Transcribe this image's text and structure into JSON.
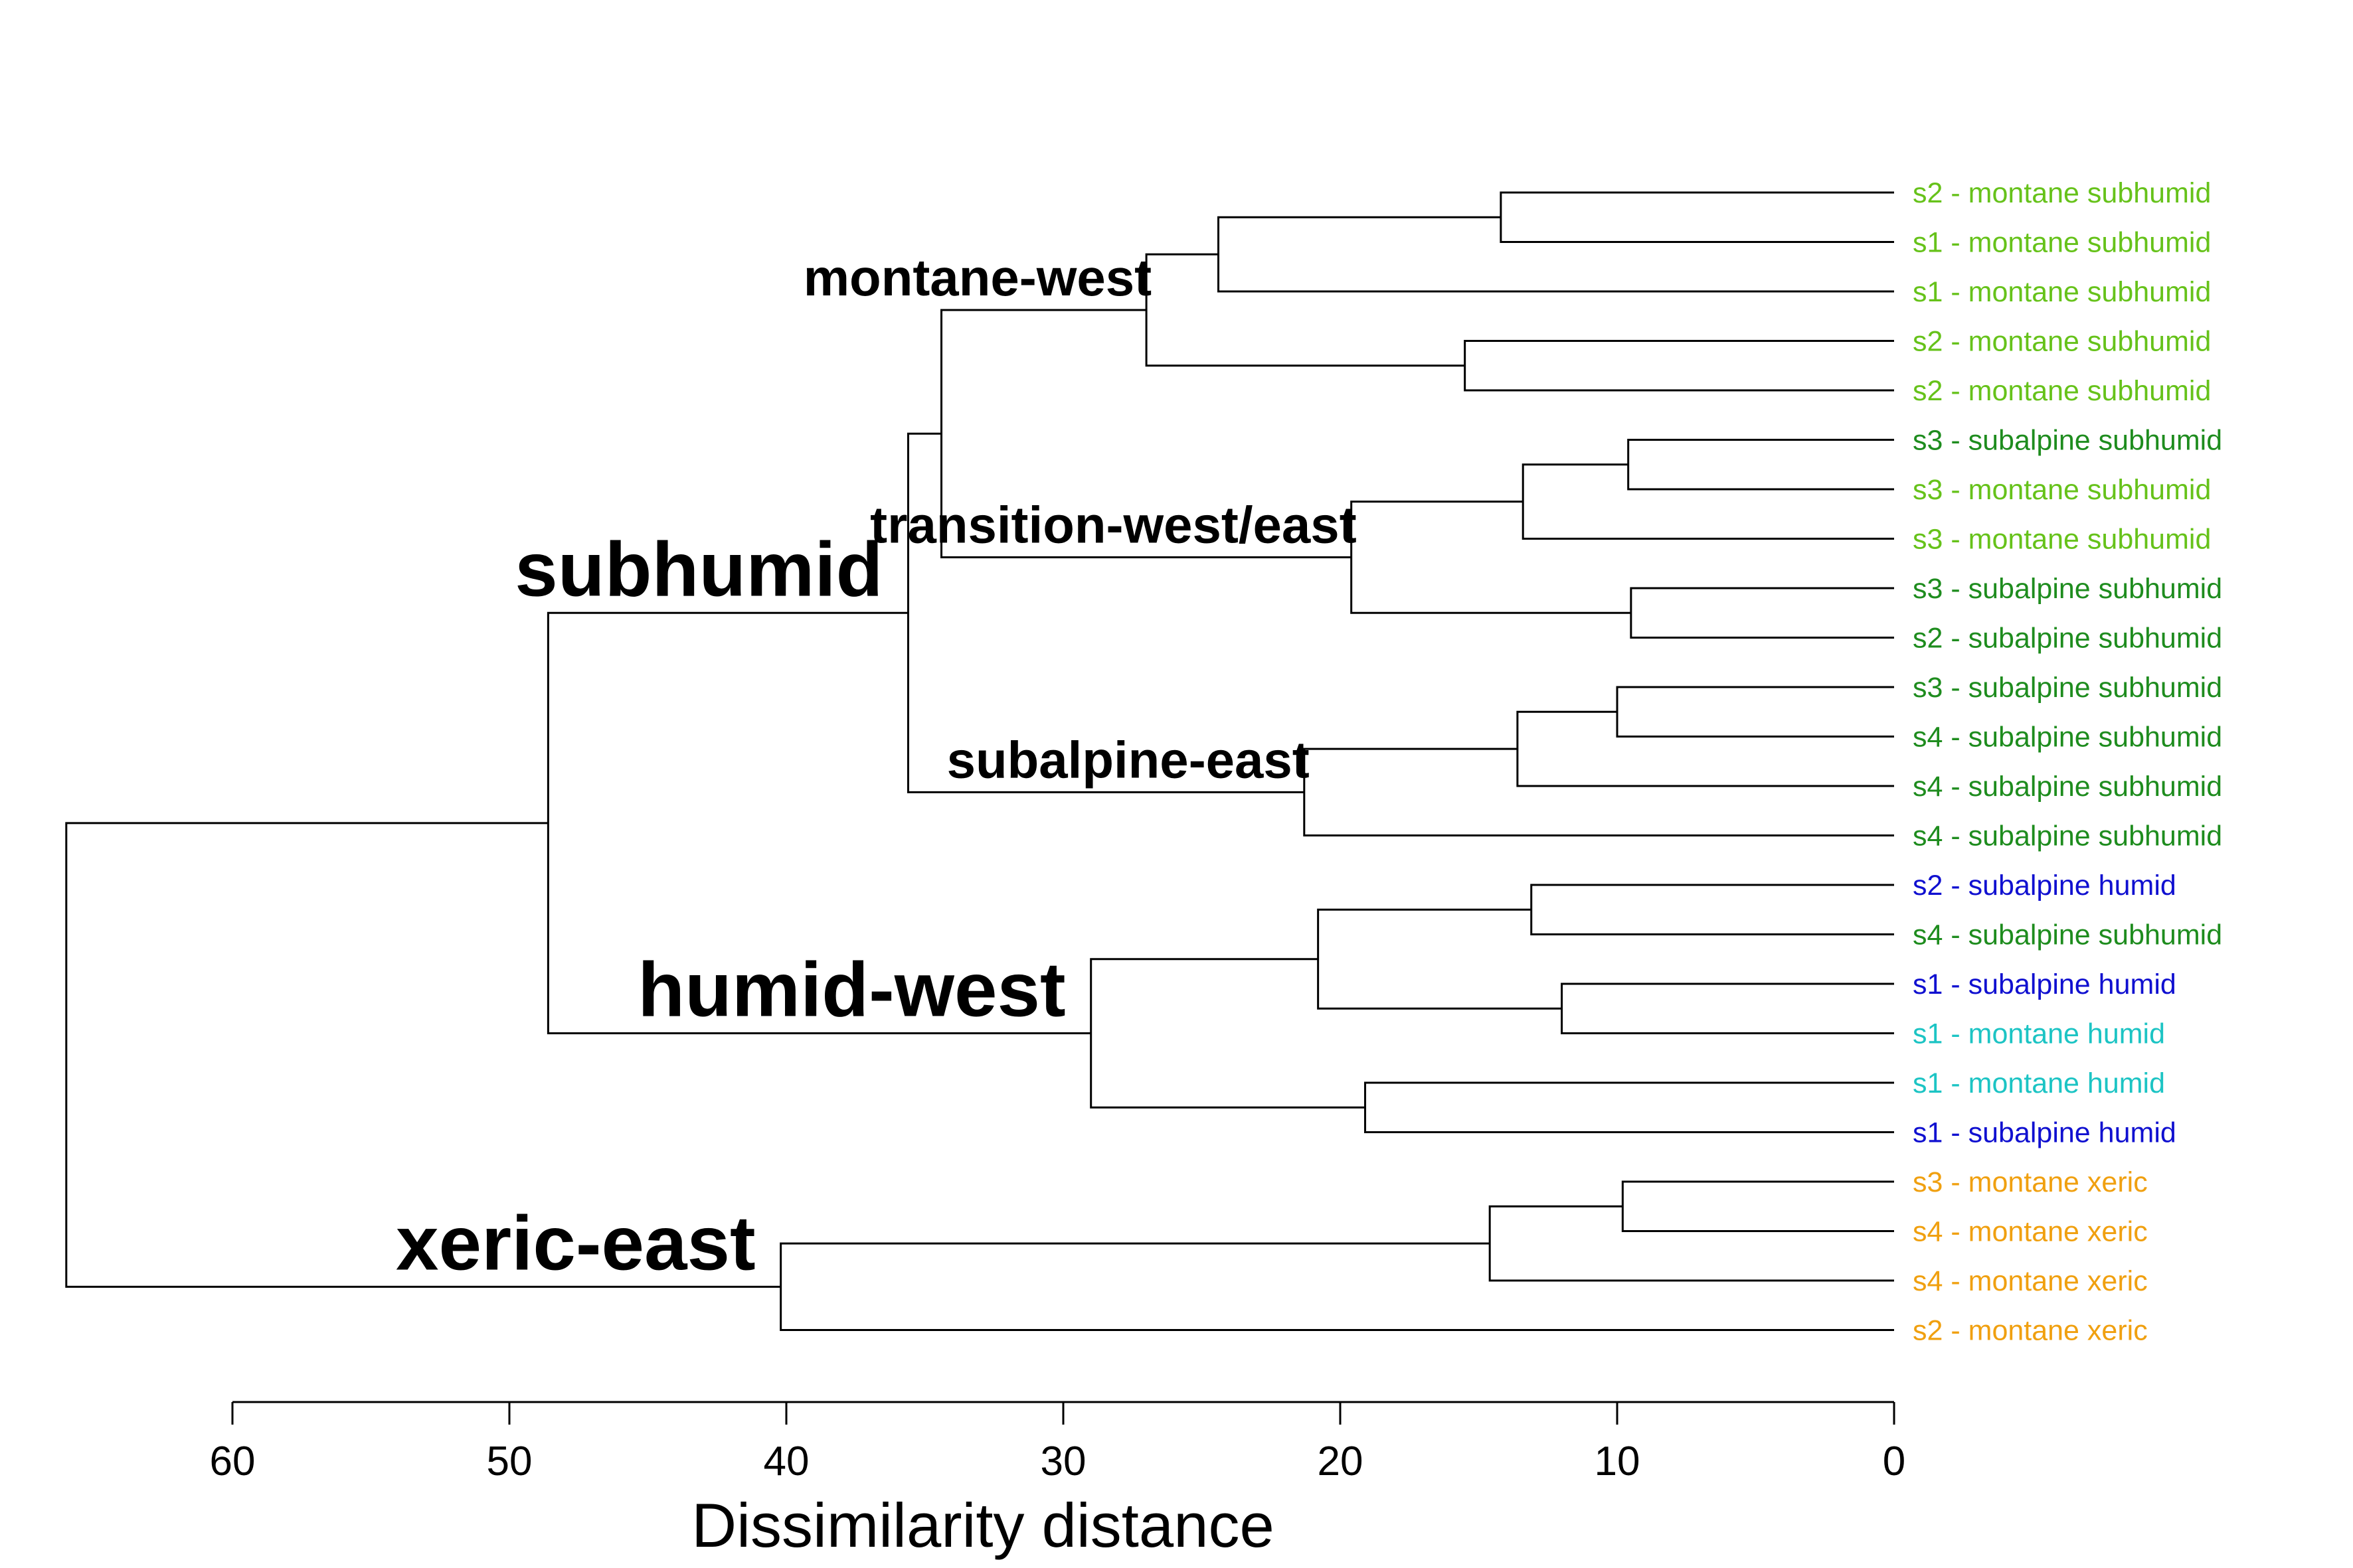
{
  "chart_data": {
    "type": "dendrogram",
    "orientation": "horizontal",
    "xlabel": "Dissimilarity distance",
    "xlim": [
      60,
      0
    ],
    "xticks": [
      60,
      50,
      40,
      30,
      20,
      10,
      0
    ],
    "leaves": [
      {
        "label": "s2 - montane subhumid",
        "color": "#66c21a"
      },
      {
        "label": "s1 - montane subhumid",
        "color": "#66c21a"
      },
      {
        "label": "s1 - montane subhumid",
        "color": "#66c21a"
      },
      {
        "label": "s2 - montane subhumid",
        "color": "#66c21a"
      },
      {
        "label": "s2 - montane subhumid",
        "color": "#66c21a"
      },
      {
        "label": "s3 - subalpine subhumid",
        "color": "#1e8c1e"
      },
      {
        "label": "s3 - montane subhumid",
        "color": "#66c21a"
      },
      {
        "label": "s3 - montane subhumid",
        "color": "#66c21a"
      },
      {
        "label": "s3 - subalpine subhumid",
        "color": "#1e8c1e"
      },
      {
        "label": "s2 - subalpine subhumid",
        "color": "#1e8c1e"
      },
      {
        "label": "s3 - subalpine subhumid",
        "color": "#1e8c1e"
      },
      {
        "label": "s4 - subalpine subhumid",
        "color": "#1e8c1e"
      },
      {
        "label": "s4 - subalpine subhumid",
        "color": "#1e8c1e"
      },
      {
        "label": "s4 - subalpine subhumid",
        "color": "#1e8c1e"
      },
      {
        "label": "s2 - subalpine humid",
        "color": "#1010d0"
      },
      {
        "label": "s4 - subalpine subhumid",
        "color": "#1e8c1e"
      },
      {
        "label": "s1 - subalpine humid",
        "color": "#1010d0"
      },
      {
        "label": "s1 - montane humid",
        "color": "#1cc4c4"
      },
      {
        "label": "s1 - montane humid",
        "color": "#1cc4c4"
      },
      {
        "label": "s1 - subalpine humid",
        "color": "#1010d0"
      },
      {
        "label": "s3 - montane xeric",
        "color": "#f0a010"
      },
      {
        "label": "s4 - montane xeric",
        "color": "#f0a010"
      },
      {
        "label": "s4 - montane xeric",
        "color": "#f0a010"
      },
      {
        "label": "s2 - montane xeric",
        "color": "#f0a010"
      }
    ],
    "merges": [
      {
        "left": "L0",
        "right": "L1",
        "height": 14.2
      },
      {
        "left": "L3",
        "right": "L4",
        "height": 15.5
      },
      {
        "left": "L5",
        "right": "L6",
        "height": 9.6
      },
      {
        "left": "L8",
        "right": "L9",
        "height": 9.5
      },
      {
        "left": "L10",
        "right": "L11",
        "height": 10.0
      },
      {
        "left": "L14",
        "right": "L15",
        "height": 13.1
      },
      {
        "left": "L16",
        "right": "L17",
        "height": 12.0
      },
      {
        "left": "L18",
        "right": "L19",
        "height": 19.1
      },
      {
        "left": "L20",
        "right": "L21",
        "height": 9.8
      },
      {
        "left": "M0",
        "right": "L2",
        "height": 24.4
      },
      {
        "left": "M2",
        "right": "L7",
        "height": 13.4
      },
      {
        "left": "M4",
        "right": "L12",
        "height": 13.6
      },
      {
        "left": "M8",
        "right": "L22",
        "height": 14.6
      },
      {
        "left": "M9",
        "right": "M1",
        "height": 27.0
      },
      {
        "left": "M10",
        "right": "M3",
        "height": 19.6
      },
      {
        "left": "M11",
        "right": "L13",
        "height": 21.3
      },
      {
        "left": "M5",
        "right": "M6",
        "height": 20.8
      },
      {
        "left": "M12",
        "right": "L23",
        "height": 40.2
      },
      {
        "left": "M13",
        "right": "M14",
        "height": 34.4
      },
      {
        "left": "M16",
        "right": "M7",
        "height": 29.0
      },
      {
        "left": "M18",
        "right": "M15",
        "height": 35.6
      },
      {
        "left": "M20",
        "right": "M19",
        "height": 48.6
      },
      {
        "left": "M21",
        "right": "M17",
        "height": 66.0
      }
    ],
    "annotations": [
      {
        "text": "montane-west",
        "node": "M13",
        "size": "medium"
      },
      {
        "text": "transition-west/east",
        "node": "M14",
        "size": "medium"
      },
      {
        "text": "subalpine-east",
        "node": "M15",
        "size": "medium"
      },
      {
        "text": "subhumid",
        "node": "M20",
        "size": "large"
      },
      {
        "text": "humid-west",
        "node": "M19",
        "size": "large"
      },
      {
        "text": "xeric-east",
        "node": "M17",
        "size": "large"
      }
    ]
  }
}
